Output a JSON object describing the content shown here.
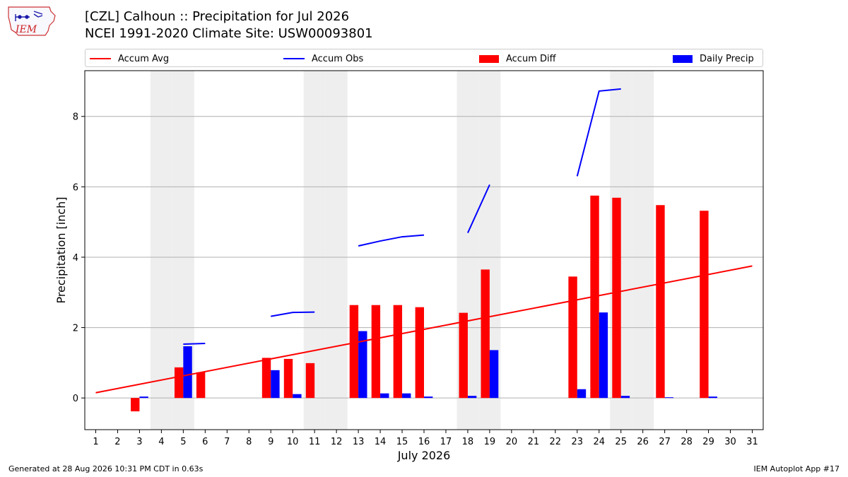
{
  "header": {
    "title_line1": "[CZL] Calhoun :: Precipitation for Jul 2026",
    "title_line2": "NCEI 1991-2020 Climate Site: USW00093801"
  },
  "logo_text": "IEM",
  "footer": {
    "left": "Generated at 28 Aug 2026 10:31 PM CDT in 0.63s",
    "right": "IEM Autoplot App #17"
  },
  "colors": {
    "accum_avg": "#ff0000",
    "accum_obs": "#0000ff",
    "accum_diff": "#ff0000",
    "daily_precip": "#0000ff",
    "weekend_shade": "#eeeeee",
    "grid": "#b0b0b0"
  },
  "chart_data": {
    "type": "bar",
    "xlabel": "July 2026",
    "ylabel": "Precipitation [inch]",
    "xlim": [
      0.5,
      31.5
    ],
    "ylim": [
      -0.9,
      9.3
    ],
    "yticks": [
      0,
      2,
      4,
      6,
      8
    ],
    "grid": "horizontal",
    "legend_placement": "top",
    "weekend_days": [
      4,
      5,
      11,
      12,
      18,
      19,
      25,
      26
    ],
    "legend": [
      "Accum Avg",
      "Accum Obs",
      "Accum Diff",
      "Daily Precip"
    ],
    "days": [
      1,
      2,
      3,
      4,
      5,
      6,
      7,
      8,
      9,
      10,
      11,
      12,
      13,
      14,
      15,
      16,
      17,
      18,
      19,
      20,
      21,
      22,
      23,
      24,
      25,
      26,
      27,
      28,
      29,
      30,
      31
    ],
    "accum_avg": {
      "x": [
        1,
        31
      ],
      "y": [
        0.15,
        3.75
      ]
    },
    "accum_obs": [
      {
        "x": [
          5,
          6
        ],
        "y": [
          1.53,
          1.55
        ]
      },
      {
        "x": [
          9,
          10,
          11
        ],
        "y": [
          2.32,
          2.43,
          2.44
        ]
      },
      {
        "x": [
          13,
          14,
          15,
          16
        ],
        "y": [
          4.32,
          4.46,
          4.58,
          4.63
        ]
      },
      {
        "x": [
          18,
          19
        ],
        "y": [
          4.69,
          6.06
        ]
      },
      {
        "x": [
          23,
          24,
          25
        ],
        "y": [
          6.3,
          8.72,
          8.78
        ]
      }
    ],
    "accum_diff": [
      {
        "day": 3,
        "value": -0.38
      },
      {
        "day": 5,
        "value": 0.87
      },
      {
        "day": 6,
        "value": 0.73
      },
      {
        "day": 9,
        "value": 1.14
      },
      {
        "day": 10,
        "value": 1.11
      },
      {
        "day": 11,
        "value": 0.99
      },
      {
        "day": 13,
        "value": 2.64
      },
      {
        "day": 14,
        "value": 2.64
      },
      {
        "day": 15,
        "value": 2.64
      },
      {
        "day": 16,
        "value": 2.58
      },
      {
        "day": 18,
        "value": 2.42
      },
      {
        "day": 19,
        "value": 3.65
      },
      {
        "day": 23,
        "value": 3.45
      },
      {
        "day": 24,
        "value": 5.75
      },
      {
        "day": 25,
        "value": 5.69
      },
      {
        "day": 27,
        "value": 5.48
      },
      {
        "day": 29,
        "value": 5.32
      }
    ],
    "daily_precip": [
      {
        "day": 3,
        "value": 0.04
      },
      {
        "day": 5,
        "value": 1.47
      },
      {
        "day": 9,
        "value": 0.79
      },
      {
        "day": 10,
        "value": 0.11
      },
      {
        "day": 13,
        "value": 1.9
      },
      {
        "day": 14,
        "value": 0.13
      },
      {
        "day": 15,
        "value": 0.13
      },
      {
        "day": 16,
        "value": 0.04
      },
      {
        "day": 18,
        "value": 0.06
      },
      {
        "day": 19,
        "value": 1.36
      },
      {
        "day": 23,
        "value": 0.25
      },
      {
        "day": 24,
        "value": 2.43
      },
      {
        "day": 25,
        "value": 0.06
      },
      {
        "day": 27,
        "value": 0.02
      },
      {
        "day": 29,
        "value": 0.04
      }
    ]
  }
}
